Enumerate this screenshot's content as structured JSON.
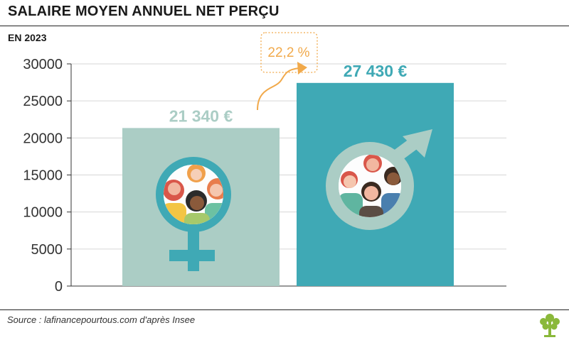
{
  "header": {
    "title": "SALAIRE MOYEN ANNUEL NET PERÇU",
    "subtitle": "EN 2023"
  },
  "source": "Source : lafinancepourtous.com d'après Insee",
  "colors": {
    "women_bar": "#abcdc5",
    "men_bar": "#3fa9b5",
    "women_symbol": "#3fa9b5",
    "men_symbol": "#abcdc5",
    "growth_accent": "#f1a94a",
    "axis": "#333333",
    "grid": "#d6d6d6",
    "logo_green": "#8ab83a"
  },
  "icons": {
    "women": "female-symbol-icon",
    "men": "male-symbol-icon",
    "growth_arrow": "curved-arrow-icon",
    "logo": "tree-logo-icon"
  },
  "chart_data": {
    "type": "bar",
    "categories": [
      "Femmes",
      "Hommes"
    ],
    "values": [
      21340,
      27430
    ],
    "data_labels": [
      "21 340 €",
      "27 430 €"
    ],
    "ylim": [
      0,
      30000
    ],
    "yticks": [
      0,
      5000,
      10000,
      15000,
      20000,
      25000,
      30000
    ],
    "ytick_labels": [
      "0",
      "5000",
      "10000",
      "15000",
      "20000",
      "25000",
      "30000"
    ],
    "grid": true,
    "annotation": "22,2 %"
  }
}
